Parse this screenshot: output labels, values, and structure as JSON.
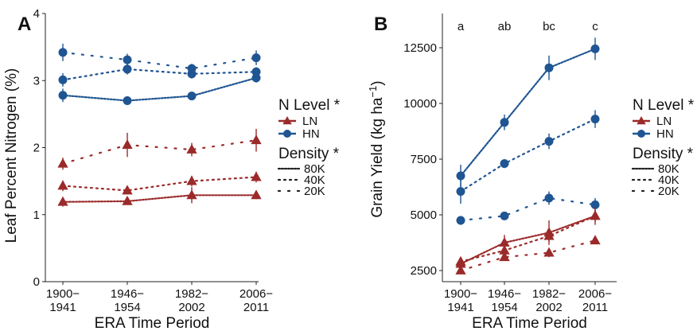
{
  "colors": {
    "LN": "#9b2a2a",
    "HN": "#1f5592",
    "axis": "#222222",
    "text": "#111111"
  },
  "chart_data": [
    {
      "panel_label": "A",
      "type": "line",
      "xlabel": "ERA Time Period",
      "ylabel": "Leaf Percent Nitrogen (%)",
      "categories": [
        [
          "1900−",
          "1941"
        ],
        [
          "1946−",
          "1954"
        ],
        [
          "1982−",
          "2002"
        ],
        [
          "2006−",
          "2011"
        ]
      ],
      "ylim": [
        0,
        4
      ],
      "yticks": [
        0,
        1,
        2,
        3,
        4
      ],
      "ytick_labels": [
        "0",
        "1",
        "2",
        "3",
        "4"
      ],
      "grid": false,
      "legend": {
        "placement": "right",
        "n_title": "N Level *",
        "n_items": [
          {
            "key": "LN",
            "label": "LN"
          },
          {
            "key": "HN",
            "label": "HN"
          }
        ],
        "d_title": "Density *",
        "d_items": [
          {
            "key": "80K",
            "label": "80K"
          },
          {
            "key": "40K",
            "label": "40K"
          },
          {
            "key": "20K",
            "label": "20K"
          }
        ]
      },
      "series": [
        {
          "n": "HN",
          "density": "80K",
          "values": [
            2.78,
            2.7,
            2.77,
            3.04
          ],
          "err": [
            0.1,
            0.06,
            0.05,
            0.07
          ]
        },
        {
          "n": "HN",
          "density": "40K",
          "values": [
            3.01,
            3.17,
            3.1,
            3.13
          ],
          "err": [
            0.1,
            0.08,
            0.07,
            0.07
          ]
        },
        {
          "n": "HN",
          "density": "20K",
          "values": [
            3.42,
            3.31,
            3.18,
            3.34
          ],
          "err": [
            0.13,
            0.09,
            0.07,
            0.11
          ]
        },
        {
          "n": "LN",
          "density": "80K",
          "values": [
            1.19,
            1.2,
            1.29,
            1.29
          ],
          "err": [
            0.07,
            0.05,
            0.12,
            0.06
          ]
        },
        {
          "n": "LN",
          "density": "40K",
          "values": [
            1.43,
            1.36,
            1.5,
            1.56
          ],
          "err": [
            0.08,
            0.05,
            0.08,
            0.08
          ]
        },
        {
          "n": "LN",
          "density": "20K",
          "values": [
            1.76,
            2.04,
            1.97,
            2.11
          ],
          "err": [
            0.09,
            0.18,
            0.1,
            0.17
          ]
        }
      ],
      "annotations": []
    },
    {
      "panel_label": "B",
      "type": "line",
      "xlabel": "ERA Time Period",
      "ylabel_main": "Grain Yield (kg ha",
      "ylabel_sup": "−1",
      "ylabel_close": ")",
      "categories": [
        [
          "1900−",
          "1941"
        ],
        [
          "1946−",
          "1954"
        ],
        [
          "1982−",
          "2002"
        ],
        [
          "2006−",
          "2011"
        ]
      ],
      "ylim": [
        2000,
        14000
      ],
      "yticks": [
        2500,
        5000,
        7500,
        10000,
        12500
      ],
      "ytick_labels": [
        "2500",
        "5000",
        "7500",
        "10000",
        "12500"
      ],
      "grid": false,
      "legend": {
        "placement": "right",
        "n_title": "N Level *",
        "n_items": [
          {
            "key": "LN",
            "label": "LN"
          },
          {
            "key": "HN",
            "label": "HN"
          }
        ],
        "d_title": "Density *",
        "d_items": [
          {
            "key": "80K",
            "label": "80K"
          },
          {
            "key": "40K",
            "label": "40K"
          },
          {
            "key": "20K",
            "label": "20K"
          }
        ]
      },
      "series": [
        {
          "n": "HN",
          "density": "80K",
          "values": [
            6750,
            9150,
            11600,
            12450
          ],
          "err": [
            500,
            350,
            550,
            500
          ]
        },
        {
          "n": "HN",
          "density": "40K",
          "values": [
            6050,
            7300,
            8300,
            9300
          ],
          "err": [
            550,
            200,
            350,
            400
          ]
        },
        {
          "n": "HN",
          "density": "20K",
          "values": [
            4750,
            4950,
            5750,
            5450
          ],
          "err": [
            200,
            100,
            300,
            300
          ]
        },
        {
          "n": "LN",
          "density": "80K",
          "values": [
            2800,
            3750,
            4200,
            4950
          ],
          "err": [
            250,
            350,
            550,
            400
          ]
        },
        {
          "n": "LN",
          "density": "40K",
          "values": [
            2900,
            3400,
            4050,
            4950
          ],
          "err": [
            150,
            200,
            250,
            250
          ]
        },
        {
          "n": "LN",
          "density": "20K",
          "values": [
            2500,
            3100,
            3300,
            3850
          ],
          "err": [
            150,
            150,
            200,
            100
          ]
        }
      ],
      "annotations": [
        "a",
        "ab",
        "bc",
        "c"
      ]
    }
  ]
}
